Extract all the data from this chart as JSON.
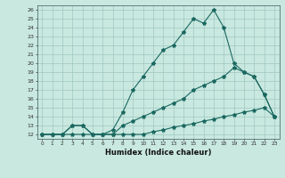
{
  "title": "",
  "xlabel": "Humidex (Indice chaleur)",
  "bg_color": "#c8e8e0",
  "grid_color": "#a0c8c0",
  "line_color": "#1a6860",
  "xlim": [
    -0.5,
    23.5
  ],
  "ylim": [
    11.5,
    26.5
  ],
  "xticks": [
    0,
    1,
    2,
    3,
    4,
    5,
    6,
    7,
    8,
    9,
    10,
    11,
    12,
    13,
    14,
    15,
    16,
    17,
    18,
    19,
    20,
    21,
    22,
    23
  ],
  "yticks": [
    12,
    13,
    14,
    15,
    16,
    17,
    18,
    19,
    20,
    21,
    22,
    23,
    24,
    25,
    26
  ],
  "line1_x": [
    0,
    1,
    2,
    3,
    4,
    5,
    6,
    7,
    8,
    9,
    10,
    11,
    12,
    13,
    14,
    15,
    16,
    17,
    18,
    19,
    20,
    21,
    22,
    23
  ],
  "line1_y": [
    12,
    12,
    12,
    12,
    12,
    12,
    12,
    12,
    12,
    12,
    12,
    12.3,
    12.5,
    12.8,
    13,
    13.2,
    13.5,
    13.7,
    14,
    14.2,
    14.5,
    14.7,
    15,
    14
  ],
  "line2_x": [
    0,
    1,
    2,
    3,
    4,
    5,
    6,
    7,
    8,
    9,
    10,
    11,
    12,
    13,
    14,
    15,
    16,
    17,
    18,
    19,
    20,
    21,
    22,
    23
  ],
  "line2_y": [
    12,
    12,
    12,
    13,
    13,
    12,
    12,
    12.5,
    14.5,
    17,
    18.5,
    20,
    21.5,
    22,
    23.5,
    25,
    24.5,
    26,
    24,
    20,
    19,
    18.5,
    16.5,
    14
  ],
  "line3_x": [
    0,
    1,
    2,
    3,
    4,
    5,
    6,
    7,
    8,
    9,
    10,
    11,
    12,
    13,
    14,
    15,
    16,
    17,
    18,
    19,
    20,
    21,
    22,
    23
  ],
  "line3_y": [
    12,
    12,
    12,
    13,
    13,
    12,
    12,
    12,
    13,
    13.5,
    14,
    14.5,
    15,
    15.5,
    16,
    17,
    17.5,
    18,
    18.5,
    19.5,
    19,
    18.5,
    16.5,
    14
  ]
}
